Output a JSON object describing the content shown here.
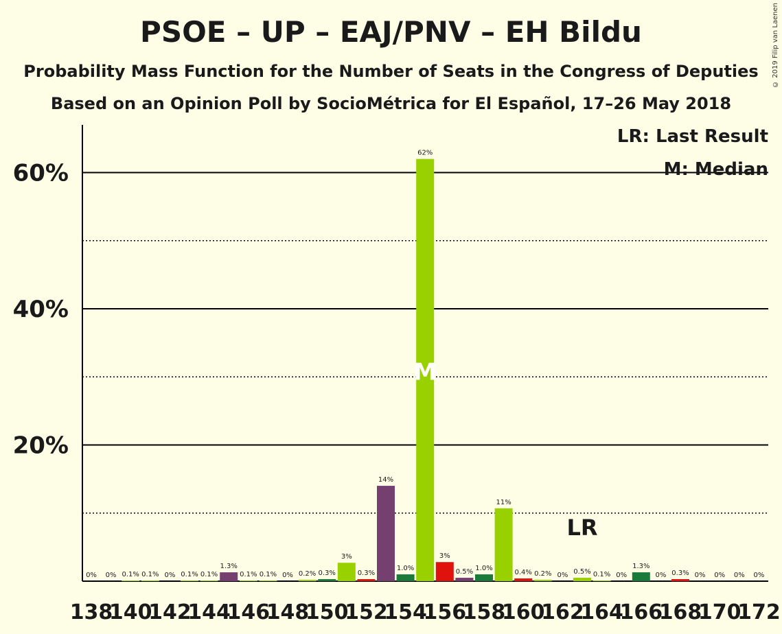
{
  "title": "PSOE – UP – EAJ/PNV – EH Bildu",
  "subtitle": "Probability Mass Function for the Number of Seats in the Congress of Deputies",
  "subtitle2": "Based on an Opinion Poll by SocioMétrica for El Español, 17–26 May 2018",
  "copyright": "© 2019 Filip van Laenen",
  "legend": {
    "last_result": "LR: Last Result",
    "median": "M: Median"
  },
  "markers": {
    "last_result_label": "LR",
    "median_label": "M",
    "last_result_seat": 163,
    "median_seat": 155
  },
  "colors": {
    "green": "#99d100",
    "purple": "#75406f",
    "darkgreen": "#1a7a3a",
    "red": "#e0120d",
    "background": "#fefde5"
  },
  "chart_data": {
    "type": "bar",
    "ylim": [
      0,
      67
    ],
    "y_ticks": [
      20,
      40,
      60
    ],
    "y_tick_labels": [
      "20%",
      "40%",
      "60%"
    ],
    "minor_y_ticks": [
      10,
      30,
      50
    ],
    "x_tick_labels": [
      "138",
      "140",
      "142",
      "144",
      "146",
      "148",
      "150",
      "152",
      "154",
      "156",
      "158",
      "160",
      "162",
      "164",
      "166",
      "168",
      "170",
      "172"
    ],
    "bars": [
      {
        "seat": 138,
        "value": 0,
        "label": "0%",
        "color": "green"
      },
      {
        "seat": 139,
        "value": 0,
        "label": "0%",
        "color": "green"
      },
      {
        "seat": 140,
        "value": 0.1,
        "label": "0.1%",
        "color": "green"
      },
      {
        "seat": 141,
        "value": 0.1,
        "label": "0.1%",
        "color": "green"
      },
      {
        "seat": 142,
        "value": 0,
        "label": "0%",
        "color": "green"
      },
      {
        "seat": 143,
        "value": 0.1,
        "label": "0.1%",
        "color": "green"
      },
      {
        "seat": 144,
        "value": 0.1,
        "label": "0.1%",
        "color": "green"
      },
      {
        "seat": 145,
        "value": 1.3,
        "label": "1.3%",
        "color": "purple"
      },
      {
        "seat": 146,
        "value": 0.1,
        "label": "0.1%",
        "color": "green"
      },
      {
        "seat": 147,
        "value": 0.1,
        "label": "0.1%",
        "color": "green"
      },
      {
        "seat": 148,
        "value": 0,
        "label": "0%",
        "color": "green"
      },
      {
        "seat": 149,
        "value": 0.2,
        "label": "0.2%",
        "color": "green"
      },
      {
        "seat": 150,
        "value": 0.3,
        "label": "0.3%",
        "color": "darkgreen"
      },
      {
        "seat": 151,
        "value": 2.7,
        "label": "3%",
        "color": "green"
      },
      {
        "seat": 152,
        "value": 0.3,
        "label": "0.3%",
        "color": "red"
      },
      {
        "seat": 153,
        "value": 14,
        "label": "14%",
        "color": "purple"
      },
      {
        "seat": 154,
        "value": 1.0,
        "label": "1.0%",
        "color": "darkgreen"
      },
      {
        "seat": 155,
        "value": 62,
        "label": "62%",
        "color": "green"
      },
      {
        "seat": 156,
        "value": 2.8,
        "label": "3%",
        "color": "red"
      },
      {
        "seat": 157,
        "value": 0.5,
        "label": "0.5%",
        "color": "purple"
      },
      {
        "seat": 158,
        "value": 1.0,
        "label": "1.0%",
        "color": "darkgreen"
      },
      {
        "seat": 159,
        "value": 10.7,
        "label": "11%",
        "color": "green"
      },
      {
        "seat": 160,
        "value": 0.4,
        "label": "0.4%",
        "color": "red"
      },
      {
        "seat": 161,
        "value": 0.2,
        "label": "0.2%",
        "color": "green"
      },
      {
        "seat": 162,
        "value": 0,
        "label": "0%",
        "color": "green"
      },
      {
        "seat": 163,
        "value": 0.5,
        "label": "0.5%",
        "color": "green"
      },
      {
        "seat": 164,
        "value": 0.1,
        "label": "0.1%",
        "color": "green"
      },
      {
        "seat": 165,
        "value": 0,
        "label": "0%",
        "color": "green"
      },
      {
        "seat": 166,
        "value": 1.3,
        "label": "1.3%",
        "color": "darkgreen"
      },
      {
        "seat": 167,
        "value": 0,
        "label": "0%",
        "color": "green"
      },
      {
        "seat": 168,
        "value": 0.3,
        "label": "0.3%",
        "color": "red"
      },
      {
        "seat": 169,
        "value": 0,
        "label": "0%",
        "color": "green"
      },
      {
        "seat": 170,
        "value": 0,
        "label": "0%",
        "color": "green"
      },
      {
        "seat": 171,
        "value": 0,
        "label": "0%",
        "color": "green"
      },
      {
        "seat": 172,
        "value": 0,
        "label": "0%",
        "color": "green"
      }
    ]
  }
}
